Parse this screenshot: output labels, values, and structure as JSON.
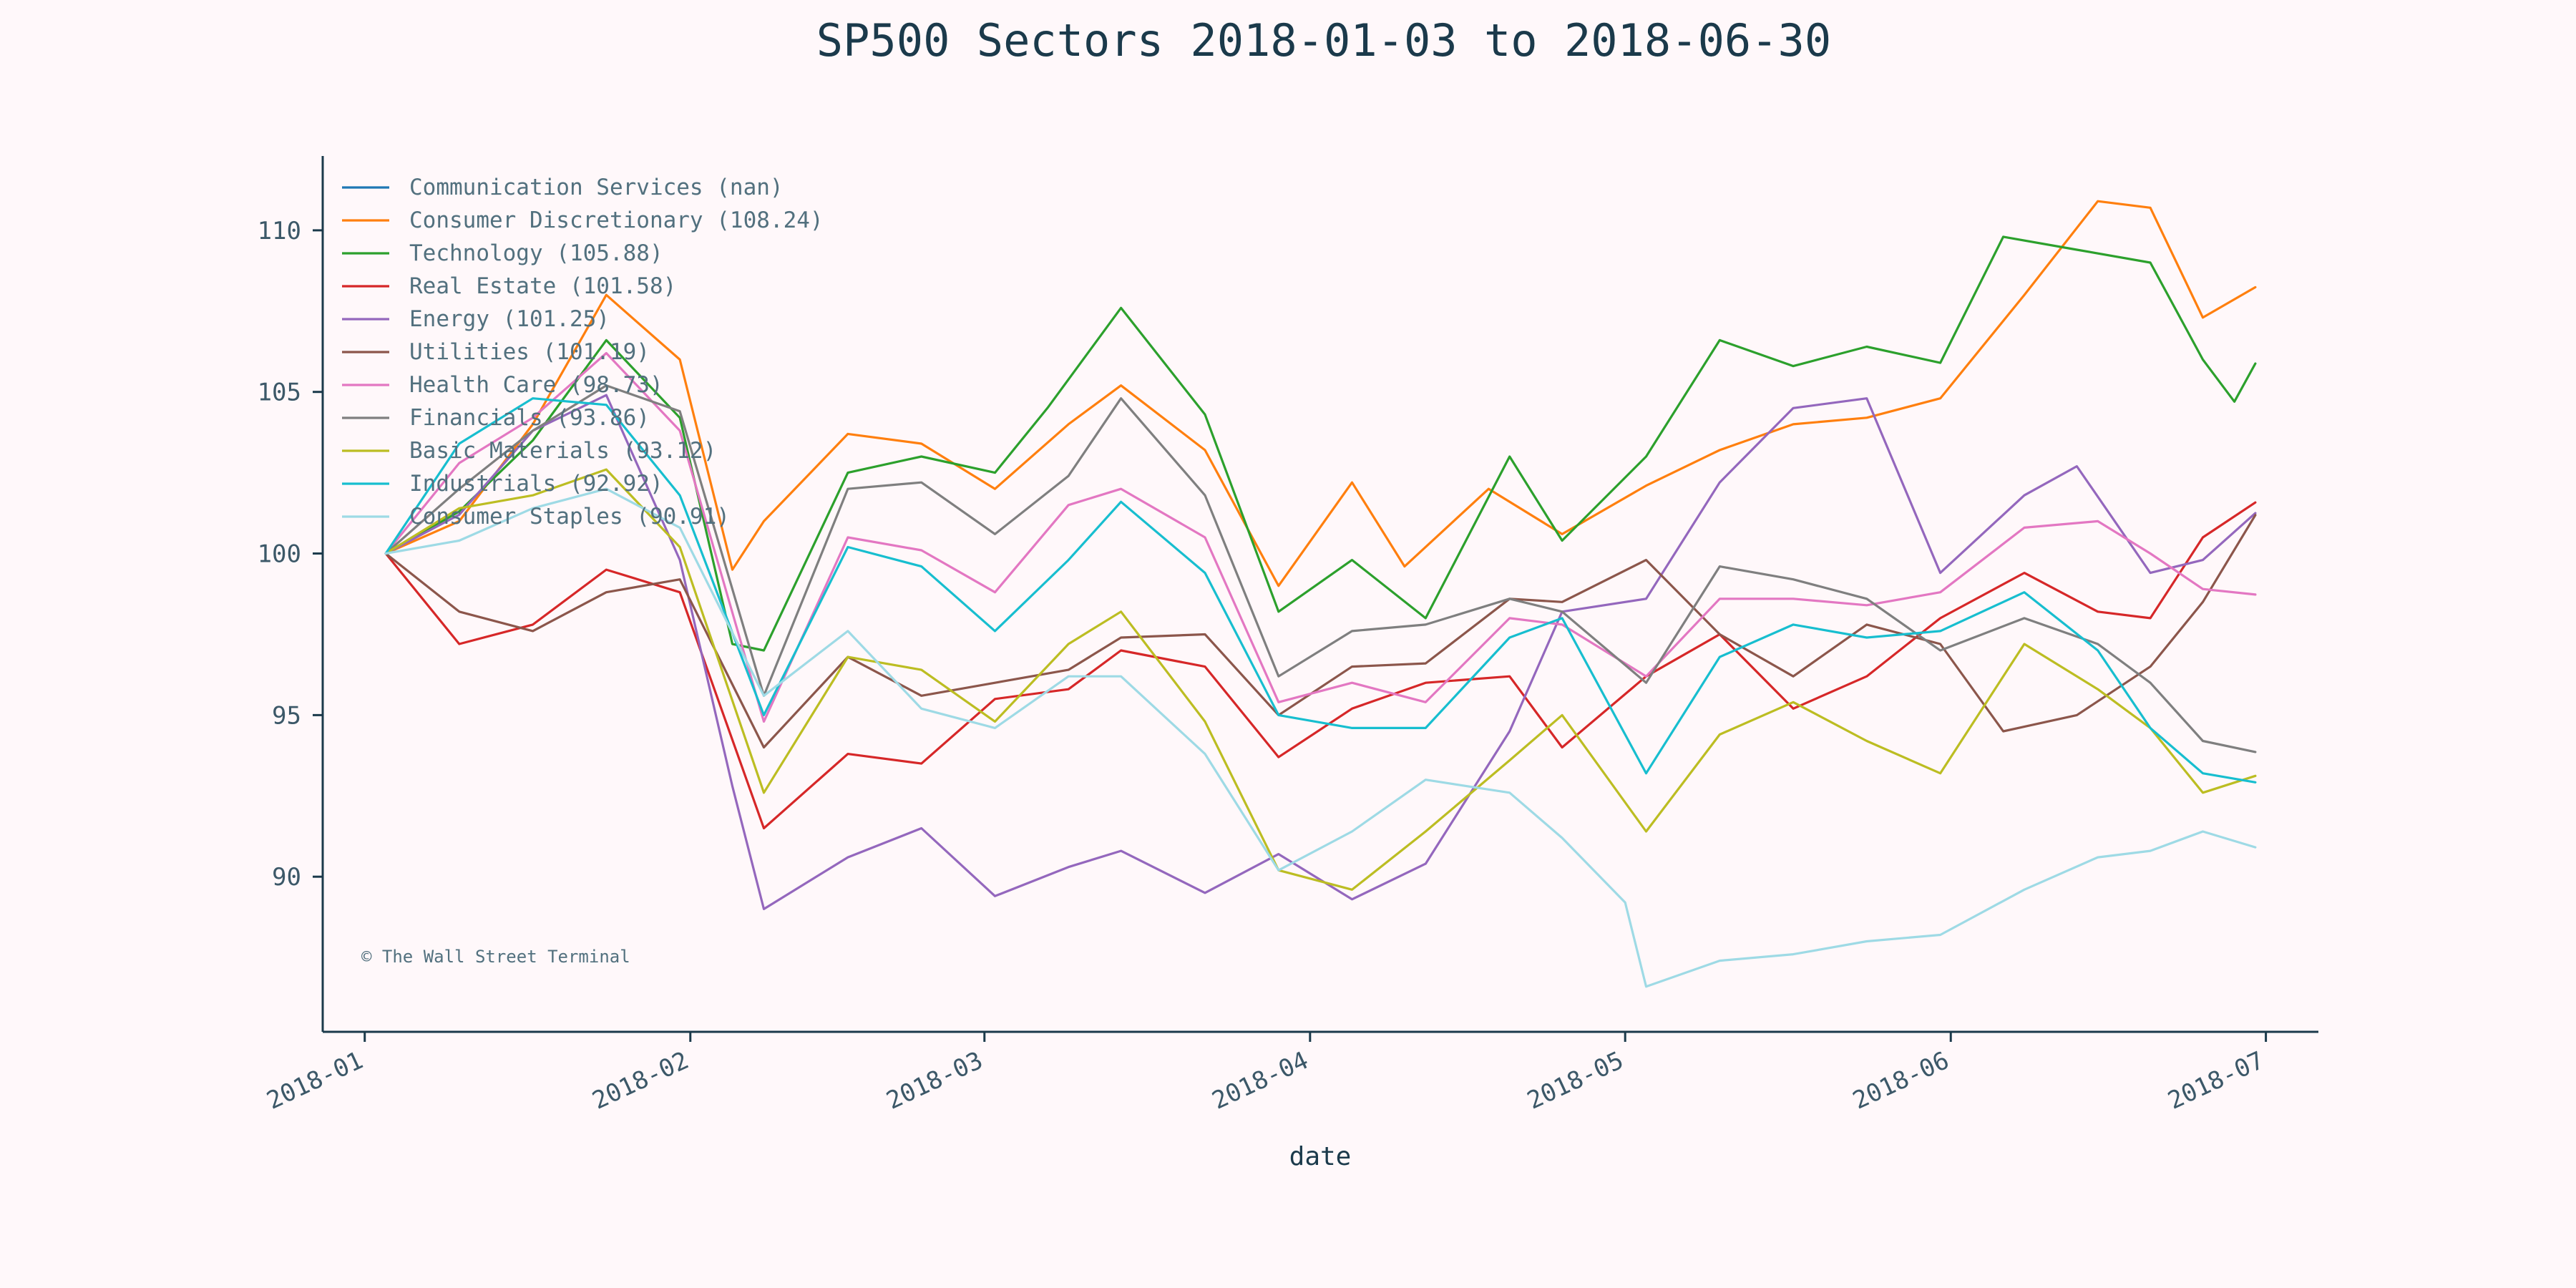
{
  "chart_data": {
    "type": "line",
    "title": "SP500 Sectors 2018-01-03 to 2018-06-30",
    "xlabel": "date",
    "ylabel": "",
    "xlim": [
      "2017-12-28",
      "2018-07-06"
    ],
    "ylim": [
      85.2,
      112.3
    ],
    "yticks": [
      90,
      95,
      100,
      105,
      110
    ],
    "xticks": [
      "2018-01-01",
      "2018-02-01",
      "2018-03-01",
      "2018-04-01",
      "2018-05-01",
      "2018-06-01",
      "2018-07-01"
    ],
    "xtick_labels": [
      "2018-01",
      "2018-02",
      "2018-03",
      "2018-04",
      "2018-05",
      "2018-06",
      "2018-07"
    ],
    "grid": false,
    "legend_position": "top-left",
    "watermark": "© The Wall Street Terminal",
    "series": [
      {
        "name": "Communication Services (nan)",
        "color": "#1f77b4",
        "x": [],
        "y": []
      },
      {
        "name": "Consumer Discretionary (108.24)",
        "color": "#ff7f0e",
        "x": [
          "2018-01-03",
          "2018-01-10",
          "2018-01-17",
          "2018-01-24",
          "2018-01-31",
          "2018-02-05",
          "2018-02-08",
          "2018-02-16",
          "2018-02-23",
          "2018-03-02",
          "2018-03-09",
          "2018-03-14",
          "2018-03-22",
          "2018-03-29",
          "2018-04-05",
          "2018-04-10",
          "2018-04-18",
          "2018-04-25",
          "2018-05-03",
          "2018-05-10",
          "2018-05-17",
          "2018-05-24",
          "2018-05-31",
          "2018-06-08",
          "2018-06-15",
          "2018-06-20",
          "2018-06-25",
          "2018-06-30"
        ],
        "y": [
          100,
          101,
          104,
          108,
          106,
          99.5,
          101,
          103.7,
          103.4,
          102,
          104,
          105.2,
          103.2,
          99,
          102.2,
          99.6,
          102,
          100.6,
          102.1,
          103.2,
          104,
          104.2,
          104.8,
          108,
          110.9,
          110.7,
          107.3,
          108.24
        ]
      },
      {
        "name": "Technology (105.88)",
        "color": "#2ca02c",
        "x": [
          "2018-01-03",
          "2018-01-10",
          "2018-01-17",
          "2018-01-24",
          "2018-01-31",
          "2018-02-05",
          "2018-02-08",
          "2018-02-16",
          "2018-02-23",
          "2018-03-02",
          "2018-03-07",
          "2018-03-14",
          "2018-03-22",
          "2018-03-29",
          "2018-04-05",
          "2018-04-12",
          "2018-04-20",
          "2018-04-25",
          "2018-05-03",
          "2018-05-10",
          "2018-05-17",
          "2018-05-24",
          "2018-05-31",
          "2018-06-06",
          "2018-06-13",
          "2018-06-20",
          "2018-06-25",
          "2018-06-28",
          "2018-06-30"
        ],
        "y": [
          100,
          101.3,
          103.5,
          106.6,
          104.2,
          97.2,
          97,
          102.5,
          103,
          102.5,
          104.5,
          107.6,
          104.3,
          98.2,
          99.8,
          98,
          103,
          100.4,
          103,
          106.6,
          105.8,
          106.4,
          105.9,
          109.8,
          109.4,
          109,
          106,
          104.7,
          105.88
        ]
      },
      {
        "name": "Real Estate (101.58)",
        "color": "#d62728",
        "x": [
          "2018-01-03",
          "2018-01-10",
          "2018-01-17",
          "2018-01-24",
          "2018-01-31",
          "2018-02-08",
          "2018-02-16",
          "2018-02-23",
          "2018-03-02",
          "2018-03-09",
          "2018-03-14",
          "2018-03-22",
          "2018-03-29",
          "2018-04-05",
          "2018-04-12",
          "2018-04-20",
          "2018-04-25",
          "2018-05-03",
          "2018-05-10",
          "2018-05-17",
          "2018-05-24",
          "2018-05-31",
          "2018-06-08",
          "2018-06-15",
          "2018-06-20",
          "2018-06-25",
          "2018-06-30"
        ],
        "y": [
          100,
          97.2,
          97.8,
          99.5,
          98.8,
          91.5,
          93.8,
          93.5,
          95.5,
          95.8,
          97,
          96.5,
          93.7,
          95.2,
          96,
          96.2,
          94,
          96.2,
          97.5,
          95.2,
          96.2,
          98,
          99.4,
          98.2,
          98,
          100.5,
          101.58
        ]
      },
      {
        "name": "Energy (101.25)",
        "color": "#9467bd",
        "x": [
          "2018-01-03",
          "2018-01-10",
          "2018-01-17",
          "2018-01-24",
          "2018-01-31",
          "2018-02-05",
          "2018-02-08",
          "2018-02-16",
          "2018-02-23",
          "2018-03-02",
          "2018-03-09",
          "2018-03-14",
          "2018-03-22",
          "2018-03-29",
          "2018-04-05",
          "2018-04-12",
          "2018-04-20",
          "2018-04-25",
          "2018-05-03",
          "2018-05-10",
          "2018-05-17",
          "2018-05-24",
          "2018-05-31",
          "2018-06-08",
          "2018-06-13",
          "2018-06-20",
          "2018-06-25",
          "2018-06-30"
        ],
        "y": [
          100,
          101.2,
          103.8,
          104.9,
          99.8,
          92.8,
          89,
          90.6,
          91.5,
          89.4,
          90.3,
          90.8,
          89.5,
          90.7,
          89.3,
          90.4,
          94.5,
          98.2,
          98.6,
          102.2,
          104.5,
          104.8,
          99.4,
          101.8,
          102.7,
          99.4,
          99.8,
          101.25
        ]
      },
      {
        "name": "Utilities (101.19)",
        "color": "#8c564b",
        "x": [
          "2018-01-03",
          "2018-01-10",
          "2018-01-17",
          "2018-01-24",
          "2018-01-31",
          "2018-02-08",
          "2018-02-16",
          "2018-02-23",
          "2018-03-02",
          "2018-03-09",
          "2018-03-14",
          "2018-03-22",
          "2018-03-29",
          "2018-04-05",
          "2018-04-12",
          "2018-04-20",
          "2018-04-25",
          "2018-05-03",
          "2018-05-10",
          "2018-05-17",
          "2018-05-24",
          "2018-05-31",
          "2018-06-06",
          "2018-06-13",
          "2018-06-20",
          "2018-06-25",
          "2018-06-30"
        ],
        "y": [
          100,
          98.2,
          97.6,
          98.8,
          99.2,
          94,
          96.8,
          95.6,
          96,
          96.4,
          97.4,
          97.5,
          95,
          96.5,
          96.6,
          98.6,
          98.5,
          99.8,
          97.5,
          96.2,
          97.8,
          97.2,
          94.5,
          95,
          96.5,
          98.5,
          101.19
        ]
      },
      {
        "name": "Health Care (98.73)",
        "color": "#e377c2",
        "x": [
          "2018-01-03",
          "2018-01-10",
          "2018-01-17",
          "2018-01-24",
          "2018-01-31",
          "2018-02-08",
          "2018-02-16",
          "2018-02-23",
          "2018-03-02",
          "2018-03-09",
          "2018-03-14",
          "2018-03-22",
          "2018-03-29",
          "2018-04-05",
          "2018-04-12",
          "2018-04-20",
          "2018-04-25",
          "2018-05-03",
          "2018-05-10",
          "2018-05-17",
          "2018-05-24",
          "2018-05-31",
          "2018-06-08",
          "2018-06-15",
          "2018-06-20",
          "2018-06-25",
          "2018-06-30"
        ],
        "y": [
          100,
          102.8,
          104.2,
          106.2,
          103.8,
          94.8,
          100.5,
          100.1,
          98.8,
          101.5,
          102,
          100.5,
          95.4,
          96,
          95.4,
          98,
          97.8,
          96.2,
          98.6,
          98.6,
          98.4,
          98.8,
          100.8,
          101,
          100,
          98.9,
          98.73
        ]
      },
      {
        "name": "Financials (93.86)",
        "color": "#7f7f7f",
        "x": [
          "2018-01-03",
          "2018-01-10",
          "2018-01-17",
          "2018-01-24",
          "2018-01-31",
          "2018-02-08",
          "2018-02-16",
          "2018-02-23",
          "2018-03-02",
          "2018-03-09",
          "2018-03-14",
          "2018-03-22",
          "2018-03-29",
          "2018-04-05",
          "2018-04-12",
          "2018-04-20",
          "2018-04-25",
          "2018-05-03",
          "2018-05-10",
          "2018-05-17",
          "2018-05-24",
          "2018-05-31",
          "2018-06-08",
          "2018-06-15",
          "2018-06-20",
          "2018-06-25",
          "2018-06-30"
        ],
        "y": [
          100,
          102,
          103.8,
          105.2,
          104.4,
          95.6,
          102,
          102.2,
          100.6,
          102.4,
          104.8,
          101.8,
          96.2,
          97.6,
          97.8,
          98.6,
          98.2,
          96,
          99.6,
          99.2,
          98.6,
          97,
          98,
          97.2,
          96,
          94.2,
          93.86
        ]
      },
      {
        "name": "Basic Materials (93.12)",
        "color": "#bcbd22",
        "x": [
          "2018-01-03",
          "2018-01-10",
          "2018-01-17",
          "2018-01-24",
          "2018-01-31",
          "2018-02-08",
          "2018-02-16",
          "2018-02-23",
          "2018-03-02",
          "2018-03-09",
          "2018-03-14",
          "2018-03-22",
          "2018-03-29",
          "2018-04-05",
          "2018-04-12",
          "2018-04-20",
          "2018-04-25",
          "2018-05-03",
          "2018-05-10",
          "2018-05-17",
          "2018-05-24",
          "2018-05-31",
          "2018-06-08",
          "2018-06-15",
          "2018-06-20",
          "2018-06-25",
          "2018-06-30"
        ],
        "y": [
          100,
          101.4,
          101.8,
          102.6,
          100.2,
          92.6,
          96.8,
          96.4,
          94.8,
          97.2,
          98.2,
          94.8,
          90.2,
          89.6,
          91.4,
          93.6,
          95,
          91.4,
          94.4,
          95.4,
          94.2,
          93.2,
          97.2,
          95.8,
          94.6,
          92.6,
          93.12
        ]
      },
      {
        "name": "Industrials (92.92)",
        "color": "#17becf",
        "x": [
          "2018-01-03",
          "2018-01-10",
          "2018-01-17",
          "2018-01-24",
          "2018-01-31",
          "2018-02-08",
          "2018-02-16",
          "2018-02-23",
          "2018-03-02",
          "2018-03-09",
          "2018-03-14",
          "2018-03-22",
          "2018-03-29",
          "2018-04-05",
          "2018-04-12",
          "2018-04-20",
          "2018-04-25",
          "2018-05-03",
          "2018-05-10",
          "2018-05-17",
          "2018-05-24",
          "2018-05-31",
          "2018-06-08",
          "2018-06-15",
          "2018-06-20",
          "2018-06-25",
          "2018-06-30"
        ],
        "y": [
          100,
          103.4,
          104.8,
          104.6,
          101.8,
          95,
          100.2,
          99.6,
          97.6,
          99.8,
          101.6,
          99.4,
          95,
          94.6,
          94.6,
          97.4,
          98,
          93.2,
          96.8,
          97.8,
          97.4,
          97.6,
          98.8,
          97,
          94.6,
          93.2,
          92.92
        ]
      },
      {
        "name": "Consumer Staples (90.91)",
        "color": "#9edae5",
        "x": [
          "2018-01-03",
          "2018-01-10",
          "2018-01-17",
          "2018-01-24",
          "2018-01-31",
          "2018-02-08",
          "2018-02-16",
          "2018-02-23",
          "2018-03-02",
          "2018-03-09",
          "2018-03-14",
          "2018-03-22",
          "2018-03-29",
          "2018-04-05",
          "2018-04-12",
          "2018-04-20",
          "2018-04-25",
          "2018-05-01",
          "2018-05-03",
          "2018-05-10",
          "2018-05-17",
          "2018-05-24",
          "2018-05-31",
          "2018-06-08",
          "2018-06-15",
          "2018-06-20",
          "2018-06-25",
          "2018-06-30"
        ],
        "y": [
          100,
          100.4,
          101.4,
          102,
          100.8,
          95.6,
          97.6,
          95.2,
          94.6,
          96.2,
          96.2,
          93.8,
          90.2,
          91.4,
          93,
          92.6,
          91.2,
          89.2,
          86.6,
          87.4,
          87.6,
          88,
          88.2,
          89.6,
          90.6,
          90.8,
          91.4,
          90.91
        ]
      }
    ]
  }
}
